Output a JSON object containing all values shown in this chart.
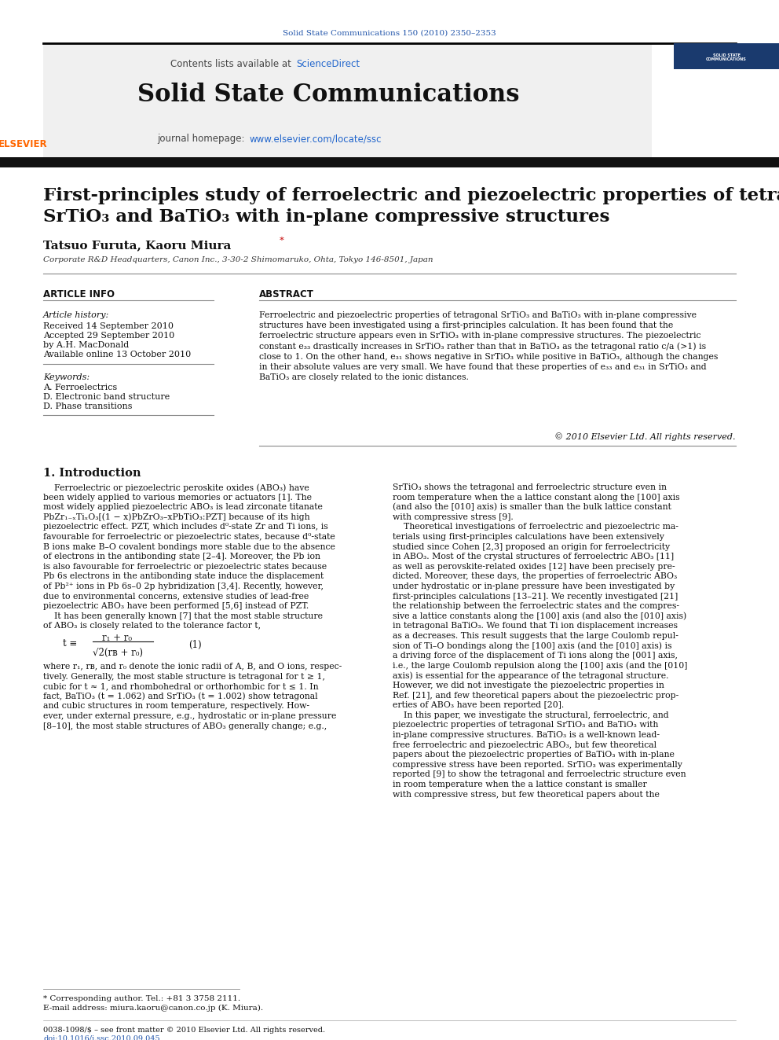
{
  "bg_color": "#ffffff",
  "top_journal_ref": "Solid State Communications 150 (2010) 2350–2353",
  "journal_name": "Solid State Communications",
  "contents_text_pre": "Contents lists available at ",
  "contents_text_link": "ScienceDirect",
  "journal_homepage_pre": "journal homepage: ",
  "journal_homepage_link": "www.elsevier.com/locate/ssc",
  "article_title_line1": "First-principles study of ferroelectric and piezoelectric properties of tetragonal",
  "article_title_line2": "SrTiO₃ and BaTiO₃ with in-plane compressive structures",
  "authors_pre": "Tatsuo Furuta, Kaoru Miura",
  "affiliation": "Corporate R&D Headquarters, Canon Inc., 3-30-2 Shimomaruko, Ohta, Tokyo 146-8501, Japan",
  "article_info_header": "ARTICLE INFO",
  "abstract_header": "ABSTRACT",
  "article_history_label": "Article history:",
  "received": "Received 14 September 2010",
  "accepted": "Accepted 29 September 2010",
  "by": "by A.H. MacDonald",
  "available": "Available online 13 October 2010",
  "keywords_label": "Keywords:",
  "keyword1": "A. Ferroelectrics",
  "keyword2": "D. Electronic band structure",
  "keyword3": "D. Phase transitions",
  "copyright": "© 2010 Elsevier Ltd. All rights reserved.",
  "section1_header": "1. Introduction",
  "footnote_star": "* Corresponding author. Tel.: +81 3 3758 2111.",
  "footnote_email": "E-mail address: miura.kaoru@canon.co.jp (K. Miura).",
  "footer_issn": "0038-1098/$ – see front matter © 2010 Elsevier Ltd. All rights reserved.",
  "footer_doi": "doi:10.1016/j.ssc.2010.09.045",
  "abstract_lines": [
    "Ferroelectric and piezoelectric properties of tetragonal SrTiO₃ and BaTiO₃ with in-plane compressive",
    "structures have been investigated using a first-principles calculation. It has been found that the",
    "ferroelectric structure appears even in SrTiO₃ with in-plane compressive structures. The piezoelectric",
    "constant e₃₃ drastically increases in SrTiO₃ rather than that in BaTiO₃ as the tetragonal ratio c/a (>1) is",
    "close to 1. On the other hand, e₃₁ shows negative in SrTiO₃ while positive in BaTiO₃, although the changes",
    "in their absolute values are very small. We have found that these properties of e₃₃ and e₃₁ in SrTiO₃ and",
    "BaTiO₃ are closely related to the ionic distances."
  ],
  "left_intro_lines": [
    "    Ferroelectric or piezoelectric peroskite oxides (ABO₃) have",
    "been widely applied to various memories or actuators [1]. The",
    "most widely applied piezoelectric ABO₃ is lead zirconate titanate",
    "PbZr₁₋ₓTiₓO₃[(1 − x)PbZrO₃–xPbTiO₃:PZT] because of its high",
    "piezoelectric effect. PZT, which includes d⁰-state Zr and Ti ions, is",
    "favourable for ferroelectric or piezoelectric states, because d⁰-state",
    "B ions make B–O covalent bondings more stable due to the absence",
    "of electrons in the antibonding state [2–4]. Moreover, the Pb ion",
    "is also favourable for ferroelectric or piezoelectric states because",
    "Pb 6s electrons in the antibonding state induce the displacement",
    "of Pb²⁺ ions in Pb 6s–0 2p hybridization [3,4]. Recently, however,",
    "due to environmental concerns, extensive studies of lead-free",
    "piezoelectric ABO₃ have been performed [5,6] instead of PZT.",
    "    It has been generally known [7] that the most stable structure",
    "of ABO₃ is closely related to the tolerance factor t,"
  ],
  "where_lines": [
    "where r₁, rв, and r₀ denote the ionic radii of A, B, and O ions, respec-",
    "tively. Generally, the most stable structure is tetragonal for t ≥ 1,",
    "cubic for t ≈ 1, and rhombohedral or orthorhombic for t ≤ 1. In",
    "fact, BaTiO₃ (t = 1.062) and SrTiO₃ (t = 1.002) show tetragonal",
    "and cubic structures in room temperature, respectively. How-",
    "ever, under external pressure, e.g., hydrostatic or in-plane pressure",
    "[8–10], the most stable structures of ABO₃ generally change; e.g.,"
  ],
  "right_col_lines": [
    "SrTiO₃ shows the tetragonal and ferroelectric structure even in",
    "room temperature when the a lattice constant along the [100] axis",
    "(and also the [010] axis) is smaller than the bulk lattice constant",
    "with compressive stress [9].",
    "    Theoretical investigations of ferroelectric and piezoelectric ma-",
    "terials using first-principles calculations have been extensively",
    "studied since Cohen [2,3] proposed an origin for ferroelectricity",
    "in ABO₃. Most of the crystal structures of ferroelectric ABO₃ [11]",
    "as well as perovskite-related oxides [12] have been precisely pre-",
    "dicted. Moreover, these days, the properties of ferroelectric ABO₃",
    "under hydrostatic or in-plane pressure have been investigated by",
    "first-principles calculations [13–21]. We recently investigated [21]",
    "the relationship between the ferroelectric states and the compres-",
    "sive a lattice constants along the [100] axis (and also the [010] axis)",
    "in tetragonal BaTiO₃. We found that Ti ion displacement increases",
    "as a decreases. This result suggests that the large Coulomb repul-",
    "sion of Ti–O bondings along the [100] axis (and the [010] axis) is",
    "a driving force of the displacement of Ti ions along the [001] axis,",
    "i.e., the large Coulomb repulsion along the [100] axis (and the [010]",
    "axis) is essential for the appearance of the tetragonal structure.",
    "However, we did not investigate the piezoelectric properties in",
    "Ref. [21], and few theoretical papers about the piezoelectric prop-",
    "erties of ABO₃ have been reported [20].",
    "    In this paper, we investigate the structural, ferroelectric, and",
    "piezoelectric properties of tetragonal SrTiO₃ and BaTiO₃ with",
    "in-plane compressive structures. BaTiO₃ is a well-known lead-",
    "free ferroelectric and piezoelectric ABO₃, but few theoretical",
    "papers about the piezoelectric properties of BaTiO₃ with in-plane",
    "compressive stress have been reported. SrTiO₃ was experimentally",
    "reported [9] to show the tetragonal and ferroelectric structure even",
    "in room temperature when the a lattice constant is smaller",
    "with compressive stress, but few theoretical papers about the"
  ]
}
